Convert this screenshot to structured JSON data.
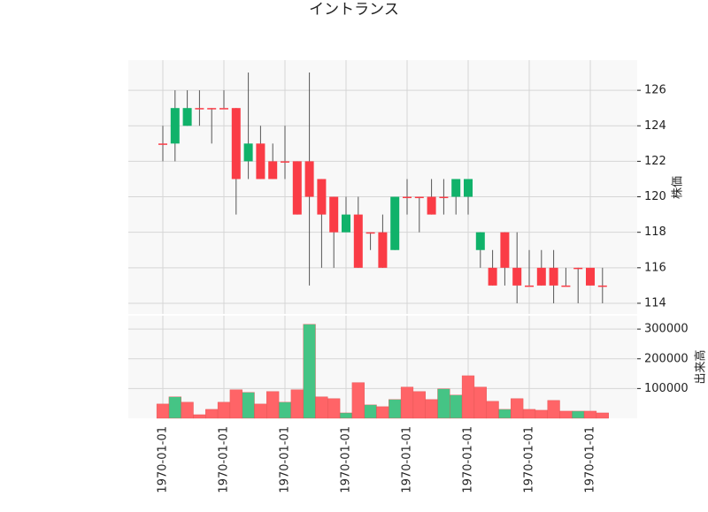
{
  "chart_data": {
    "type": "candlestick",
    "title": "イントランス",
    "categories": [
      "1970-01-01",
      null,
      null,
      null,
      null,
      "1970-01-01",
      null,
      null,
      null,
      null,
      "1970-01-01",
      null,
      null,
      null,
      null,
      "1970-01-01",
      null,
      null,
      null,
      null,
      "1970-01-01",
      null,
      null,
      null,
      null,
      "1970-01-01",
      null,
      null,
      null,
      null,
      "1970-01-01",
      null,
      null,
      null,
      null,
      "1970-01-01",
      null
    ],
    "open": [
      123,
      123,
      124,
      125,
      125,
      125,
      125,
      122,
      123,
      122,
      122,
      122,
      122,
      121,
      120,
      118,
      119,
      118,
      118,
      117,
      120,
      120,
      120,
      120,
      120,
      120,
      117,
      116,
      118,
      116,
      115,
      116,
      116,
      115,
      116,
      116,
      115
    ],
    "high": [
      124,
      126,
      126,
      126,
      125,
      126,
      125,
      127,
      124,
      123,
      124,
      122,
      127,
      121,
      120,
      120,
      120,
      118,
      119,
      120,
      121,
      120,
      121,
      121,
      121,
      121,
      118,
      117,
      118,
      118,
      117,
      117,
      117,
      116,
      116,
      116,
      116
    ],
    "low": [
      122,
      122,
      124,
      124,
      123,
      125,
      119,
      121,
      121,
      121,
      121,
      119,
      115,
      116,
      116,
      118,
      116,
      117,
      116,
      117,
      119,
      118,
      119,
      119,
      119,
      119,
      116,
      115,
      115,
      114,
      115,
      115,
      114,
      115,
      114,
      115,
      114
    ],
    "close": [
      123,
      125,
      125,
      125,
      125,
      125,
      121,
      123,
      121,
      121,
      122,
      119,
      120,
      119,
      118,
      119,
      116,
      118,
      116,
      120,
      120,
      120,
      119,
      120,
      121,
      121,
      118,
      115,
      116,
      115,
      115,
      115,
      115,
      115,
      116,
      115,
      115
    ],
    "up_color": "#10b26a",
    "down_color": "#fa3c46",
    "volume": [
      48000,
      72000,
      54000,
      12000,
      30000,
      54000,
      96000,
      87000,
      48000,
      90000,
      54000,
      96000,
      316000,
      72000,
      66000,
      18000,
      120000,
      45000,
      39000,
      63000,
      105000,
      90000,
      63000,
      99000,
      78000,
      143000,
      105000,
      57000,
      30000,
      66000,
      30000,
      27000,
      60000,
      24000,
      24000,
      24000,
      18000
    ],
    "volume_colors": [
      "#ff6467",
      "#45c485",
      "#ff6467",
      "#ff6467",
      "#ff6467",
      "#ff6467",
      "#ff6467",
      "#45c485",
      "#ff6467",
      "#ff6467",
      "#45c485",
      "#ff6467",
      "#45c485",
      "#ff6467",
      "#ff6467",
      "#45c485",
      "#ff6467",
      "#45c485",
      "#ff6467",
      "#45c485",
      "#ff6467",
      "#ff6467",
      "#ff6467",
      "#45c485",
      "#45c485",
      "#ff6467",
      "#ff6467",
      "#ff6467",
      "#45c485",
      "#ff6467",
      "#ff6467",
      "#ff6467",
      "#ff6467",
      "#ff6467",
      "#45c485",
      "#ff6467",
      "#ff6467"
    ],
    "ylabel": "株価",
    "ylim": [
      113.4,
      127.7
    ],
    "yticks": [
      114,
      116,
      118,
      120,
      122,
      124,
      126
    ],
    "volume_ylabel": "出来高",
    "volume_ylim": [
      0,
      345000
    ],
    "volume_yticks": [
      100000,
      200000,
      300000
    ],
    "grid": true
  }
}
